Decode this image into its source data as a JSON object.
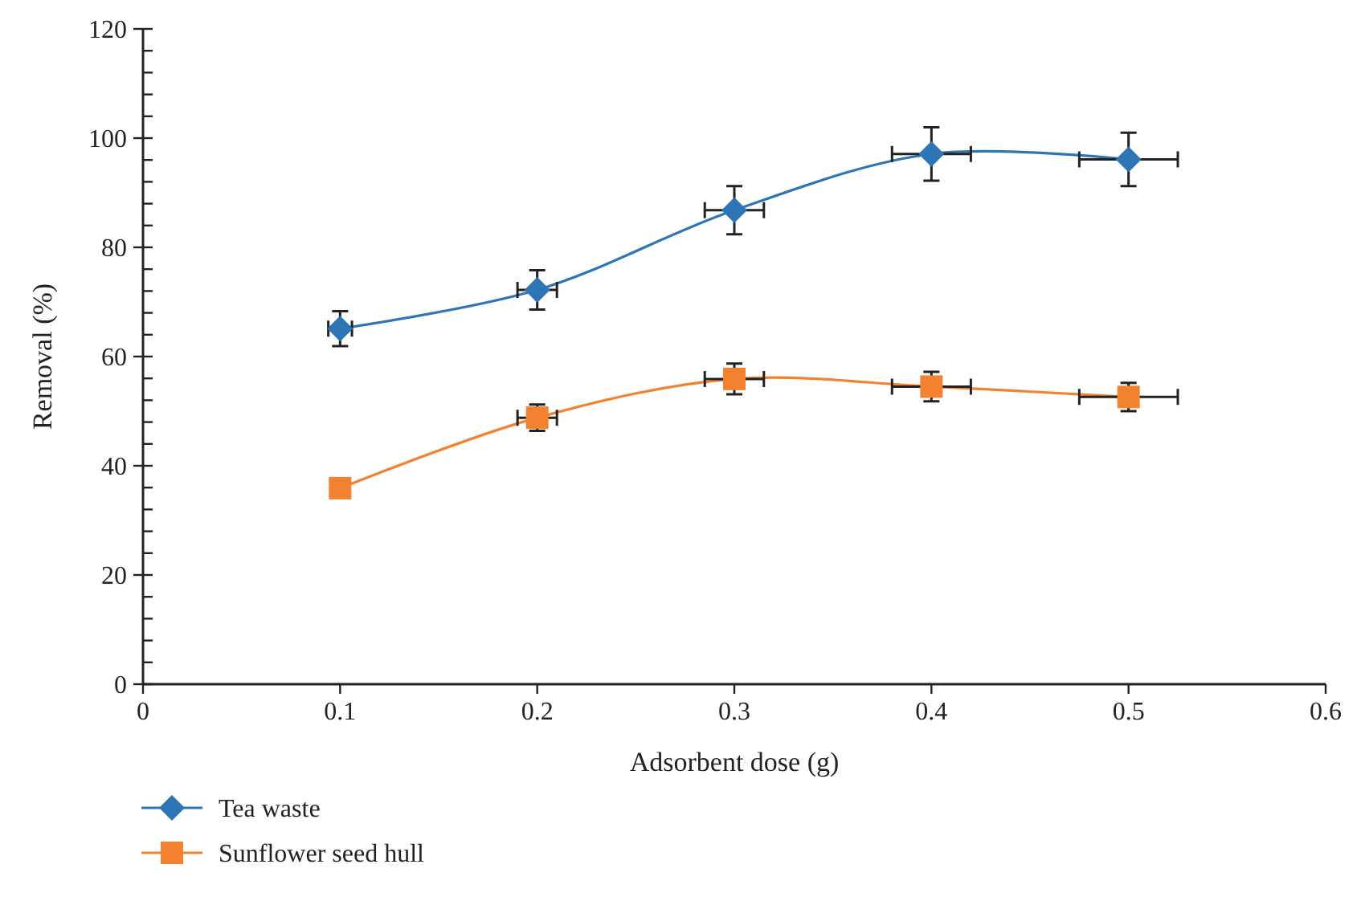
{
  "chart_data": {
    "type": "line",
    "xlabel": "Adsorbent dose (g)",
    "ylabel": "Removal (%)",
    "x": [
      0.1,
      0.2,
      0.3,
      0.4,
      0.5
    ],
    "xlim": [
      0,
      0.6
    ],
    "xticks": [
      0,
      0.1,
      0.2,
      0.3,
      0.4,
      0.5,
      0.6
    ],
    "ylim": [
      0,
      120
    ],
    "yticks": [
      0,
      {
        "value": 4,
        "label": null
      },
      {
        "value": 8,
        "label": null
      },
      {
        "value": 12,
        "label": null
      },
      {
        "value": 16,
        "label": null
      },
      20,
      {
        "value": 24,
        "label": null
      },
      {
        "value": 28,
        "label": null
      },
      {
        "value": 32,
        "label": null
      },
      {
        "value": 36,
        "label": null
      },
      40,
      {
        "value": 44,
        "label": null
      },
      {
        "value": 48,
        "label": null
      },
      {
        "value": 52,
        "label": null
      },
      {
        "value": 56,
        "label": null
      },
      60,
      {
        "value": 64,
        "label": null
      },
      {
        "value": 68,
        "label": null
      },
      {
        "value": 72,
        "label": null
      },
      {
        "value": 76,
        "label": null
      },
      80,
      {
        "value": 84,
        "label": null
      },
      {
        "value": 88,
        "label": null
      },
      {
        "value": 92,
        "label": null
      },
      {
        "value": 96,
        "label": null
      },
      100,
      {
        "value": 104,
        "label": null
      },
      {
        "value": 108,
        "label": null
      },
      {
        "value": 112,
        "label": null
      },
      {
        "value": 116,
        "label": null
      },
      120
    ],
    "grid": false,
    "legend": "bottom left",
    "line_style": "solid",
    "series": [
      {
        "name": "Tea waste",
        "color": "#2e75b6",
        "marker": "diamond",
        "values": [
          65.1,
          72.2,
          86.8,
          97.1,
          96.1
        ],
        "errors": [
          3.2,
          3.6,
          4.4,
          4.9,
          4.9
        ],
        "xerrors": [
          0.006,
          0.01,
          0.015,
          0.02,
          0.025
        ]
      },
      {
        "name": "Sunflower seed hull",
        "color": "#f28230",
        "marker": "square",
        "values": [
          35.9,
          48.8,
          55.9,
          54.5,
          52.6
        ],
        "errors": [
          null,
          2.4,
          2.8,
          2.7,
          2.6
        ],
        "xerrors": [
          null,
          0.01,
          0.015,
          0.02,
          0.025
        ]
      }
    ]
  }
}
